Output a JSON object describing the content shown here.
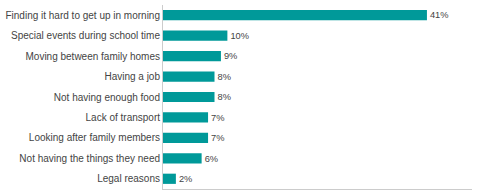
{
  "chart_data": {
    "type": "bar",
    "orientation": "horizontal",
    "categories": [
      "Finding it hard to get up in morning",
      "Special events during school time",
      "Moving between family homes",
      "Having a job",
      "Not having enough food",
      "Lack of transport",
      "Looking after family members",
      "Not having the things they need",
      "Legal reasons"
    ],
    "values": [
      41,
      10,
      9,
      8,
      8,
      7,
      7,
      6,
      2
    ],
    "value_labels": [
      "41%",
      "10%",
      "9%",
      "8%",
      "8%",
      "7%",
      "7%",
      "6%",
      "2%"
    ],
    "color": "#009999",
    "xlim": [
      0,
      48
    ],
    "data_labels": true,
    "tick_labels": "y",
    "grid": false
  }
}
